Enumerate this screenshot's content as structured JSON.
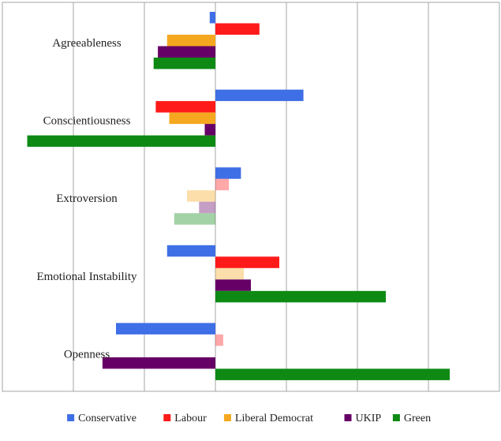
{
  "chart_data": {
    "type": "bar",
    "orientation": "horizontal",
    "categories": [
      "Agreeableness",
      "Conscientiousness",
      "Extroversion",
      "Emotional Instability",
      "Openness"
    ],
    "series": [
      {
        "name": "Conservative",
        "color": "#3f6fe6",
        "values": [
          -0.08,
          1.24,
          0.36,
          -0.68,
          -1.4
        ]
      },
      {
        "name": "Labour",
        "color": "#ff1a1a",
        "values": [
          0.62,
          -0.84,
          0.19,
          0.9,
          0.11
        ]
      },
      {
        "name": "Liberal Democrat",
        "color": "#f5a81f",
        "values": [
          -0.68,
          -0.65,
          -0.4,
          0.4,
          null
        ]
      },
      {
        "name": "UKIP",
        "color": "#660066",
        "values": [
          -0.81,
          -0.15,
          -0.23,
          0.5,
          -1.59
        ]
      },
      {
        "name": "Green",
        "color": "#0e8a14",
        "values": [
          -0.87,
          -2.65,
          -0.58,
          2.4,
          3.3
        ]
      }
    ],
    "faded": [
      [
        false,
        false,
        false,
        false,
        false
      ],
      [
        false,
        false,
        false,
        false,
        false
      ],
      [
        false,
        true,
        true,
        true,
        true
      ],
      [
        false,
        false,
        true,
        false,
        false
      ],
      [
        false,
        true,
        false,
        false,
        false
      ]
    ],
    "xlim": [
      -3,
      4
    ],
    "grid": true,
    "legend_position": "bottom",
    "title": "",
    "xlabel": "",
    "ylabel": ""
  }
}
